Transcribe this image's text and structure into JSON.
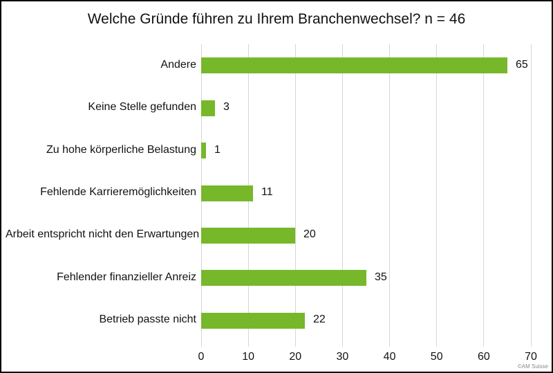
{
  "chart_data": {
    "type": "bar",
    "orientation": "horizontal",
    "title": "Welche Gründe führen zu Ihrem Branchenwechsel? n = 46",
    "categories": [
      "Andere",
      "Keine Stelle gefunden",
      "Zu hohe körperliche Belastung",
      "Fehlende Karrieremöglichkeiten",
      "Arbeit entspricht nicht den Erwartungen",
      "Fehlender finanzieller Anreiz",
      "Betrieb passte nicht"
    ],
    "values": [
      65,
      3,
      1,
      11,
      20,
      35,
      22
    ],
    "xlabel": "",
    "ylabel": "",
    "xlim": [
      0,
      70
    ],
    "xticks": [
      0,
      10,
      20,
      30,
      40,
      50,
      60,
      70
    ],
    "grid": "vertical",
    "legend": "none",
    "data_labels": true
  },
  "colors": {
    "bar": "#76b82a",
    "gridline": "#d6d6d6",
    "text": "#111111",
    "copyright_text": "#8a8a8a"
  },
  "footer": {
    "copyright": "©AM Suisse"
  }
}
